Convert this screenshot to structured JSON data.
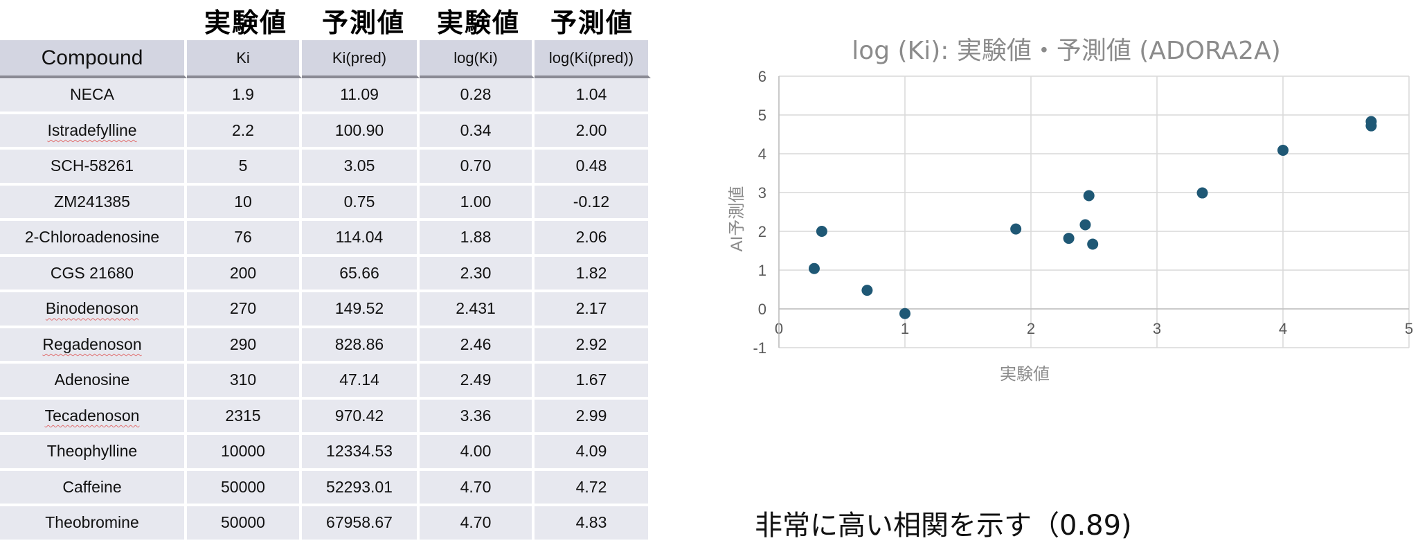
{
  "table": {
    "group_headers": [
      "実験値",
      "予測値",
      "実験値",
      "予測値"
    ],
    "columns": [
      "Compound",
      "Ki",
      "Ki(pred)",
      "log(Ki)",
      "log(Ki(pred))"
    ],
    "rows": [
      {
        "compound": "NECA",
        "ki": "1.9",
        "ki_pred": "11.09",
        "log_ki": "0.28",
        "log_ki_pred": "1.04",
        "flagged": false
      },
      {
        "compound": "Istradefylline",
        "ki": "2.2",
        "ki_pred": "100.90",
        "log_ki": "0.34",
        "log_ki_pred": "2.00",
        "flagged": true
      },
      {
        "compound": "SCH-58261",
        "ki": "5",
        "ki_pred": "3.05",
        "log_ki": "0.70",
        "log_ki_pred": "0.48",
        "flagged": false
      },
      {
        "compound": "ZM241385",
        "ki": "10",
        "ki_pred": "0.75",
        "log_ki": "1.00",
        "log_ki_pred": "-0.12",
        "flagged": false
      },
      {
        "compound": "2-Chloroadenosine",
        "ki": "76",
        "ki_pred": "114.04",
        "log_ki": "1.88",
        "log_ki_pred": "2.06",
        "flagged": false
      },
      {
        "compound": "CGS 21680",
        "ki": "200",
        "ki_pred": "65.66",
        "log_ki": "2.30",
        "log_ki_pred": "1.82",
        "flagged": false
      },
      {
        "compound": "Binodenoson",
        "ki": "270",
        "ki_pred": "149.52",
        "log_ki": "2.431",
        "log_ki_pred": "2.17",
        "flagged": true
      },
      {
        "compound": "Regadenoson",
        "ki": "290",
        "ki_pred": "828.86",
        "log_ki": "2.46",
        "log_ki_pred": "2.92",
        "flagged": true
      },
      {
        "compound": "Adenosine",
        "ki": "310",
        "ki_pred": "47.14",
        "log_ki": "2.49",
        "log_ki_pred": "1.67",
        "flagged": false
      },
      {
        "compound": "Tecadenoson",
        "ki": "2315",
        "ki_pred": "970.42",
        "log_ki": "3.36",
        "log_ki_pred": "2.99",
        "flagged": true
      },
      {
        "compound": "Theophylline",
        "ki": "10000",
        "ki_pred": "12334.53",
        "log_ki": "4.00",
        "log_ki_pred": "4.09",
        "flagged": false
      },
      {
        "compound": "Caffeine",
        "ki": "50000",
        "ki_pred": "52293.01",
        "log_ki": "4.70",
        "log_ki_pred": "4.72",
        "flagged": false
      },
      {
        "compound": "Theobromine",
        "ki": "50000",
        "ki_pred": "67958.67",
        "log_ki": "4.70",
        "log_ki_pred": "4.83",
        "flagged": false
      }
    ]
  },
  "chart_data": {
    "type": "scatter",
    "title": "log (Ki): 実験値・予測値 (ADORA2A)",
    "xlabel": "実験値",
    "ylabel": "AI予測値",
    "xlim": [
      0,
      5
    ],
    "ylim": [
      -1,
      6
    ],
    "xticks": [
      "0",
      "1",
      "2",
      "3",
      "4",
      "5"
    ],
    "yticks": [
      "-1",
      "0",
      "1",
      "2",
      "3",
      "4",
      "5",
      "6"
    ],
    "grid": true,
    "marker_color": "#1f5875",
    "series": [
      {
        "x": [
          0.28,
          0.34,
          0.7,
          1.0,
          1.88,
          2.3,
          2.431,
          2.46,
          2.49,
          3.36,
          4.0,
          4.7,
          4.7
        ],
        "y": [
          1.04,
          2.0,
          0.48,
          -0.12,
          2.06,
          1.82,
          2.17,
          2.92,
          1.67,
          2.99,
          4.09,
          4.72,
          4.83
        ]
      }
    ]
  },
  "caption": "非常に高い相関を示す（0.89)"
}
